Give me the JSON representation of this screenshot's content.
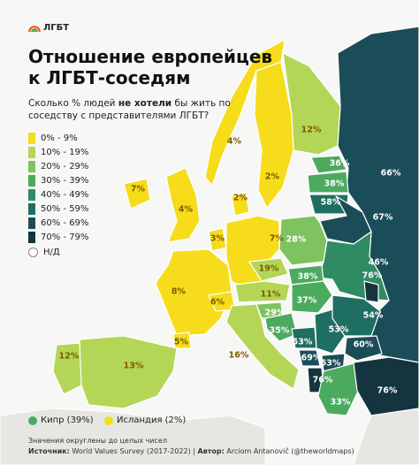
{
  "brand": {
    "label": "ЛГБТ",
    "icon": "rainbow-icon"
  },
  "title_line1": "Отношение европейцев",
  "title_line2": "к ЛГБТ-соседям",
  "subtitle_pre": "Сколько % людей ",
  "subtitle_bold": "не хотели",
  "subtitle_post": " бы жить по соседству с представителями ЛГБТ?",
  "legend": [
    {
      "label": "0% - 9%",
      "color": "#f6dc1a"
    },
    {
      "label": "10% - 19%",
      "color": "#b3d657"
    },
    {
      "label": "20% - 29%",
      "color": "#7fc35f"
    },
    {
      "label": "30% - 39%",
      "color": "#4caa5f"
    },
    {
      "label": "40% - 49%",
      "color": "#2f8b63"
    },
    {
      "label": "50% - 59%",
      "color": "#1f6e62"
    },
    {
      "label": "60% - 69%",
      "color": "#1a4d58"
    },
    {
      "label": "70% - 79%",
      "color": "#14343f"
    }
  ],
  "legend_na": "Н/Д",
  "cyprus": {
    "label": "Кипр (39%)",
    "color": "#4caa5f"
  },
  "iceland": {
    "label": "Исландия (2%)",
    "color": "#f6dc1a"
  },
  "footer_note": "Значения округлены до целых чисел",
  "footer_source_label": "Источник:",
  "footer_source": " World Values Survey (2017-2022) | ",
  "footer_author_label": "Автор:",
  "footer_author": " Arciom Antanovič (@theworldmaps)",
  "countries": [
    {
      "id": "norway",
      "value": 4,
      "label": "4%"
    },
    {
      "id": "sweden",
      "value": 2,
      "label": "2%"
    },
    {
      "id": "finland",
      "value": 12,
      "label": "12%"
    },
    {
      "id": "denmark",
      "value": 2,
      "label": "2%"
    },
    {
      "id": "uk",
      "value": 4,
      "label": "4%"
    },
    {
      "id": "ireland",
      "value": 7,
      "label": "7%"
    },
    {
      "id": "netherlands",
      "value": 3,
      "label": "3%"
    },
    {
      "id": "germany",
      "value": 7,
      "label": "7%"
    },
    {
      "id": "france",
      "value": 8,
      "label": "8%"
    },
    {
      "id": "switzerland",
      "value": 6,
      "label": "6%"
    },
    {
      "id": "andorra",
      "value": 5,
      "label": "5%"
    },
    {
      "id": "spain",
      "value": 13,
      "label": "13%"
    },
    {
      "id": "portugal",
      "value": 12,
      "label": "12%"
    },
    {
      "id": "italy",
      "value": 16,
      "label": "16%"
    },
    {
      "id": "czechia",
      "value": 19,
      "label": "19%"
    },
    {
      "id": "austria",
      "value": 11,
      "label": "11%"
    },
    {
      "id": "slovenia",
      "value": 29,
      "label": "29%"
    },
    {
      "id": "croatia",
      "value": 35,
      "label": "35%"
    },
    {
      "id": "poland",
      "value": 28,
      "label": "28%"
    },
    {
      "id": "slovakia",
      "value": 38,
      "label": "38%"
    },
    {
      "id": "hungary",
      "value": 37,
      "label": "37%"
    },
    {
      "id": "estonia",
      "value": 36,
      "label": "36%"
    },
    {
      "id": "latvia",
      "value": 38,
      "label": "38%"
    },
    {
      "id": "lithuania",
      "value": 58,
      "label": "58%"
    },
    {
      "id": "belarus",
      "value": 67,
      "label": "67%"
    },
    {
      "id": "ukraine",
      "value": 46,
      "label": "46%"
    },
    {
      "id": "russia",
      "value": 66,
      "label": "66%"
    },
    {
      "id": "romania",
      "value": 54,
      "label": "54%"
    },
    {
      "id": "moldova",
      "value": 76,
      "label": "76%"
    },
    {
      "id": "serbia",
      "value": 53,
      "label": "53%"
    },
    {
      "id": "bosnia",
      "value": 53,
      "label": "53%"
    },
    {
      "id": "montenegro",
      "value": 69,
      "label": "69%"
    },
    {
      "id": "bulgaria",
      "value": 60,
      "label": "60%"
    },
    {
      "id": "n_macedonia",
      "value": 63,
      "label": "63%"
    },
    {
      "id": "albania",
      "value": 76,
      "label": "76%"
    },
    {
      "id": "greece",
      "value": 33,
      "label": "33%"
    },
    {
      "id": "turkey",
      "value": 76,
      "label": "76%"
    }
  ]
}
